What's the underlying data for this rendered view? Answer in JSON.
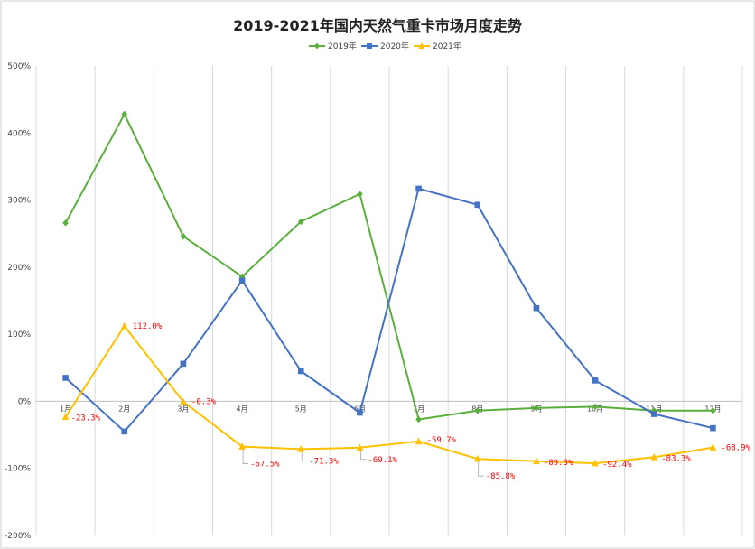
{
  "chart_data": {
    "type": "line",
    "title": "2019-2021年国内天然气重卡市场月度走势",
    "categories": [
      "1月",
      "2月",
      "3月",
      "4月",
      "5月",
      "6月",
      "7月",
      "8月",
      "9月",
      "10月",
      "11月",
      "12月"
    ],
    "y_ticks": [
      "500%",
      "400%",
      "300%",
      "200%",
      "100%",
      "0%",
      "-100%",
      "-200%"
    ],
    "ylim": [
      -200,
      500
    ],
    "grid": "vertical",
    "legend_position": "top-center",
    "series": [
      {
        "name": "2019年",
        "color": "#5aaf3c",
        "marker": "diamond",
        "values": [
          266,
          428,
          246,
          186,
          268,
          309,
          -27,
          -14,
          -10,
          -8,
          -14,
          -14
        ]
      },
      {
        "name": "2020年",
        "color": "#4472c4",
        "marker": "square",
        "values": [
          35,
          -45,
          56,
          180,
          45,
          -17,
          317,
          293,
          139,
          31,
          -19,
          -40
        ]
      },
      {
        "name": "2021年",
        "color": "#ffc000",
        "marker": "triangle",
        "values": [
          -23.3,
          112.0,
          -0.3,
          -67.5,
          -71.3,
          -69.1,
          -59.7,
          -85.8,
          -89.3,
          -92.4,
          -83.3,
          -68.9
        ],
        "data_labels": [
          "-23.3%",
          "112.0%",
          "-0.3%",
          "-67.5%",
          "-71.3%",
          "-69.1%",
          "-59.7%",
          "-85.8%",
          "-89.3%",
          "-92.4%",
          "-83.3%",
          "-68.9%"
        ]
      }
    ]
  }
}
